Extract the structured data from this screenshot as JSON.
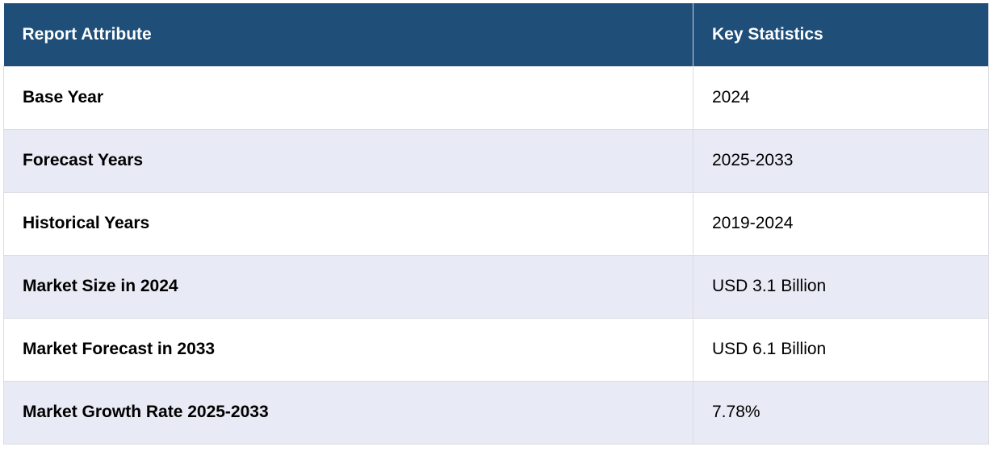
{
  "table": {
    "header": [
      "Report Attribute",
      "Key Statistics"
    ],
    "rows": [
      [
        "Base Year",
        "2024"
      ],
      [
        "Forecast Years",
        "2025-2033"
      ],
      [
        "Historical Years",
        "2019-2024"
      ],
      [
        "Market Size in 2024",
        "USD 3.1 Billion"
      ],
      [
        "Market Forecast in 2033",
        "USD 6.1 Billion"
      ],
      [
        "Market Growth Rate 2025-2033",
        "7.78%"
      ]
    ]
  }
}
